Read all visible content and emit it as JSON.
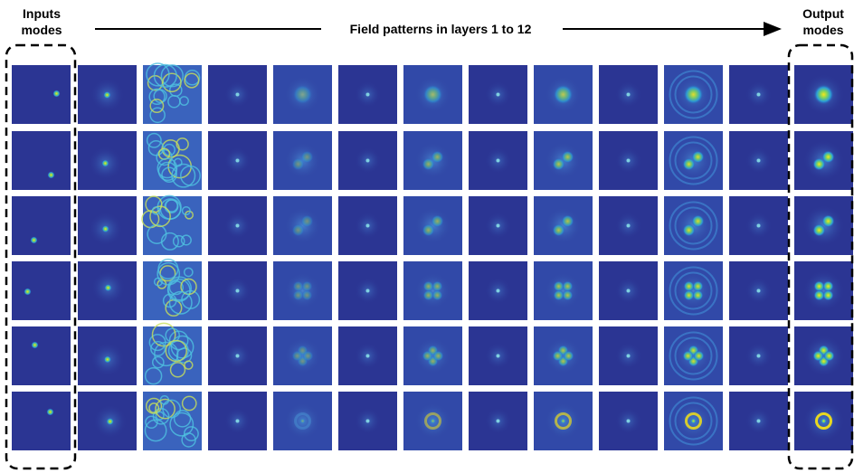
{
  "header": {
    "input_label": [
      "Inputs",
      "modes"
    ],
    "title": "Field patterns in layers 1 to 12",
    "output_label": [
      "Output",
      "modes"
    ]
  }
}
